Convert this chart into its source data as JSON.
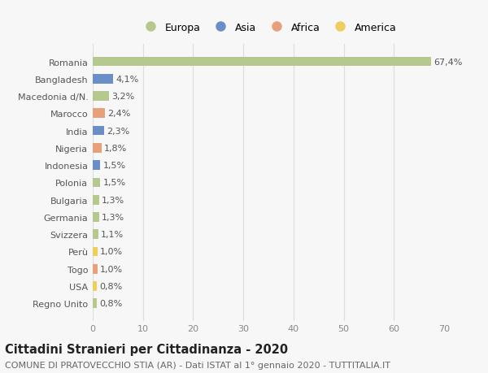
{
  "countries": [
    "Romania",
    "Bangladesh",
    "Macedonia d/N.",
    "Marocco",
    "India",
    "Nigeria",
    "Indonesia",
    "Polonia",
    "Bulgaria",
    "Germania",
    "Svizzera",
    "Perù",
    "Togo",
    "USA",
    "Regno Unito"
  ],
  "values": [
    67.4,
    4.1,
    3.2,
    2.4,
    2.3,
    1.8,
    1.5,
    1.5,
    1.3,
    1.3,
    1.1,
    1.0,
    1.0,
    0.8,
    0.8
  ],
  "labels": [
    "67,4%",
    "4,1%",
    "3,2%",
    "2,4%",
    "2,3%",
    "1,8%",
    "1,5%",
    "1,5%",
    "1,3%",
    "1,3%",
    "1,1%",
    "1,0%",
    "1,0%",
    "0,8%",
    "0,8%"
  ],
  "categories": [
    "Europa",
    "Asia",
    "Europa",
    "Africa",
    "Asia",
    "Africa",
    "Asia",
    "Europa",
    "Europa",
    "Europa",
    "Europa",
    "America",
    "Africa",
    "America",
    "Europa"
  ],
  "colors": {
    "Europa": "#b5c98e",
    "Asia": "#6a8fc8",
    "Africa": "#e8a07a",
    "America": "#f0ce5e"
  },
  "legend_order": [
    "Europa",
    "Asia",
    "Africa",
    "America"
  ],
  "legend_colors": {
    "Europa": "#b5c98e",
    "Asia": "#6a8fc8",
    "Africa": "#e8a07a",
    "America": "#f0ce5e"
  },
  "xlim": [
    0,
    70
  ],
  "xticks": [
    0,
    10,
    20,
    30,
    40,
    50,
    60,
    70
  ],
  "background_color": "#f7f7f7",
  "grid_color": "#dddddd",
  "title": "Cittadini Stranieri per Cittadinanza - 2020",
  "subtitle": "COMUNE DI PRATOVECCHIO STIA (AR) - Dati ISTAT al 1° gennaio 2020 - TUTTITALIA.IT",
  "title_fontsize": 10.5,
  "subtitle_fontsize": 8,
  "bar_height": 0.55,
  "label_fontsize": 8,
  "ytick_fontsize": 8,
  "xtick_fontsize": 8
}
